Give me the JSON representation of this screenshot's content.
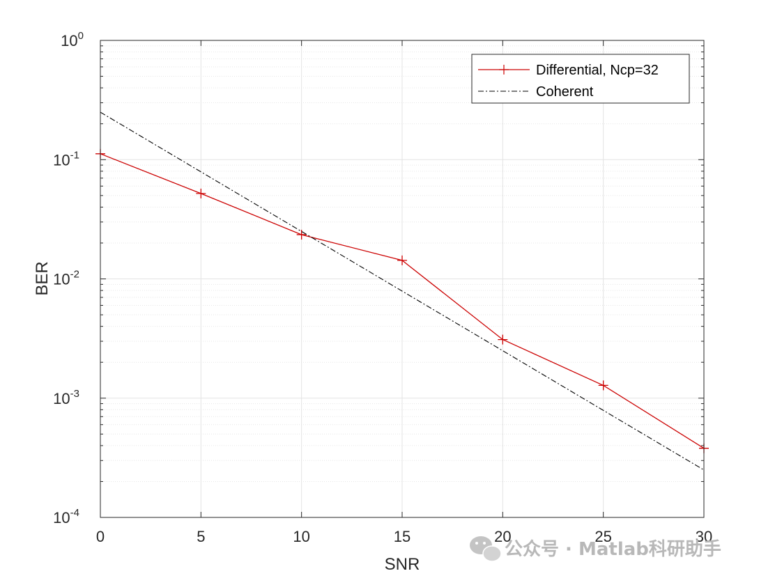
{
  "chart_data": {
    "type": "line",
    "xlabel": "SNR",
    "ylabel": "BER",
    "xlim": [
      0,
      30
    ],
    "ylim": [
      0.0001,
      1
    ],
    "yscale": "log",
    "grid": true,
    "minor_grid": true,
    "legend_position": "top-right",
    "x_ticks": [
      "0",
      "5",
      "10",
      "15",
      "20",
      "25",
      "30"
    ],
    "y_ticks": [
      {
        "base": "10",
        "exp": "0",
        "value": 1
      },
      {
        "base": "10",
        "exp": "-1",
        "value": 0.1
      },
      {
        "base": "10",
        "exp": "-2",
        "value": 0.01
      },
      {
        "base": "10",
        "exp": "-3",
        "value": 0.001
      },
      {
        "base": "10",
        "exp": "-4",
        "value": 0.0001
      }
    ],
    "series": [
      {
        "name": "Differential, Ncp=32",
        "color": "#cc0000",
        "line_style": "solid",
        "marker": "plus",
        "x": [
          0,
          5,
          10,
          15,
          20,
          25,
          30
        ],
        "y": [
          0.112,
          0.052,
          0.0235,
          0.0143,
          0.0031,
          0.00128,
          0.00038
        ]
      },
      {
        "name": "Coherent",
        "color": "#000000",
        "line_style": "dash-dot",
        "marker": "none",
        "x": [
          0,
          5,
          10,
          15,
          20,
          25,
          30
        ],
        "y": [
          0.25,
          0.079,
          0.025,
          0.0079,
          0.0025,
          0.00079,
          0.00025
        ]
      }
    ]
  },
  "watermark": {
    "text": "公众号 · Matlab科研助手",
    "icon": "wechat-icon"
  }
}
